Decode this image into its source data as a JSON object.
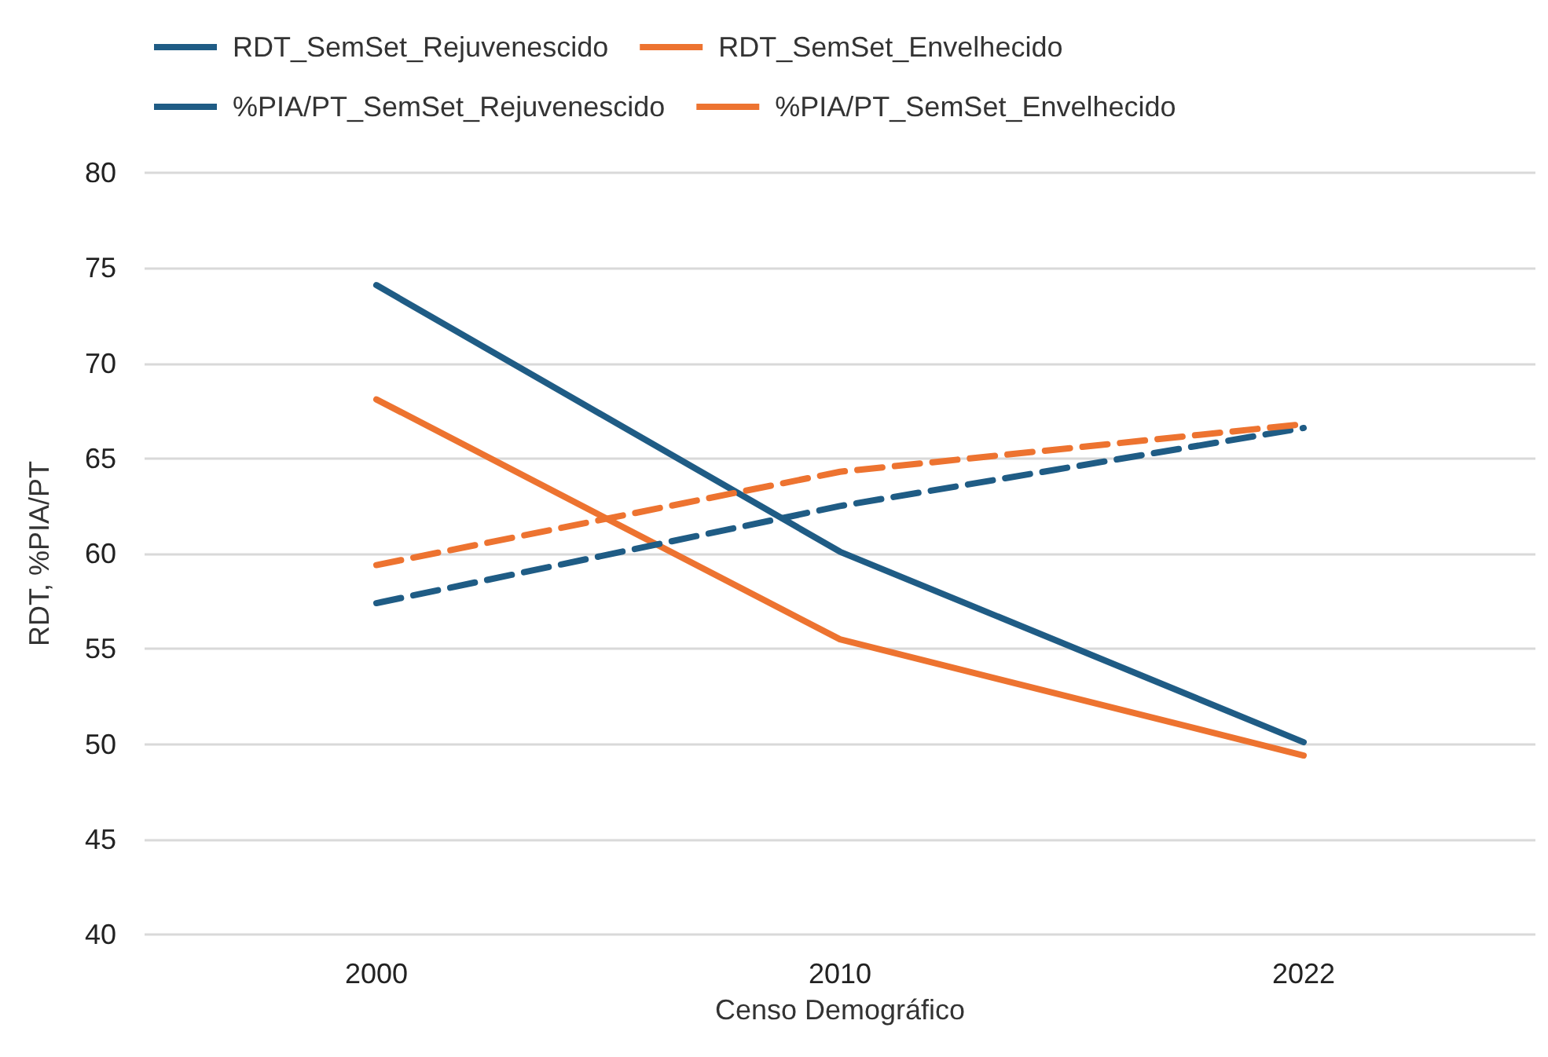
{
  "chart_data": {
    "type": "line",
    "xlabel": "Censo Demográfico",
    "ylabel": "RDT, %PIA/PT",
    "categories": [
      "2000",
      "2010",
      "2022"
    ],
    "series": [
      {
        "name": "RDT_SemSet_Rejuvenescido",
        "color": "#1f5c85",
        "values": [
          74.1,
          60.1,
          50.1
        ],
        "line_style": "solid"
      },
      {
        "name": "RDT_SemSet_Envelhecido",
        "color": "#ed7330",
        "values": [
          68.1,
          55.5,
          49.4
        ],
        "line_style": "solid"
      },
      {
        "name": "%PIA/PT_SemSet_Rejuvenescido",
        "color": "#1f5c85",
        "values": [
          57.4,
          62.5,
          66.6
        ],
        "line_style": "dashed"
      },
      {
        "name": "%PIA/PT_SemSet_Envelhecido",
        "color": "#ed7330",
        "values": [
          59.4,
          64.3,
          66.8
        ],
        "line_style": "dashed"
      }
    ],
    "ylim": [
      40,
      80
    ],
    "yticks": [
      40,
      45,
      50,
      55,
      60,
      65,
      70,
      75,
      80
    ],
    "grid": "y",
    "legend": "top",
    "marker": "none"
  }
}
